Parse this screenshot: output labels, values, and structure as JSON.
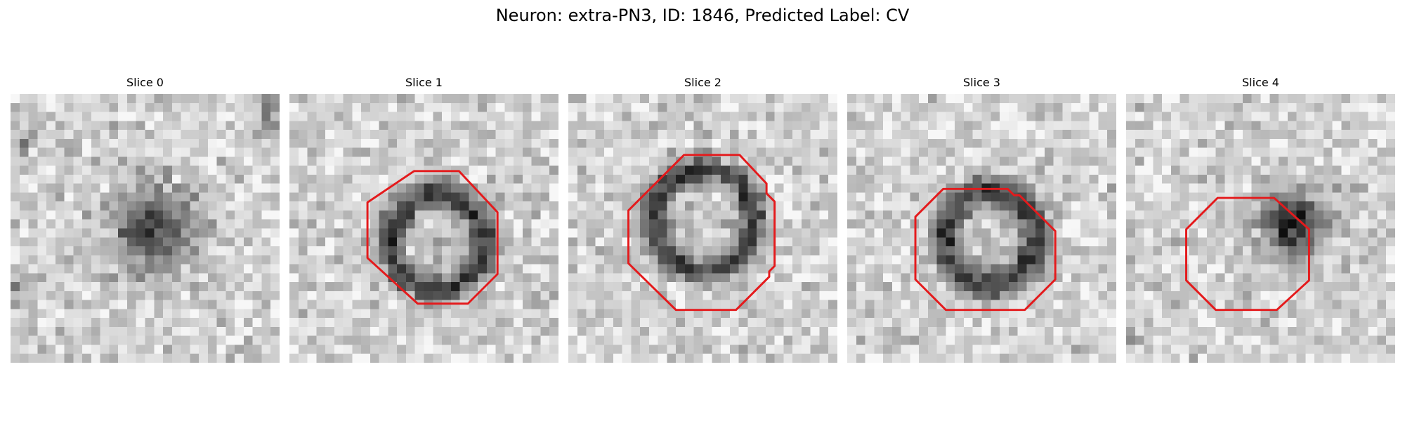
{
  "figure": {
    "title": "Neuron: extra-PN3, ID: 1846, Predicted Label: CV"
  },
  "slices": [
    {
      "title": "Slice 0",
      "has_contour": false,
      "feature": "dark-blob-center"
    },
    {
      "title": "Slice 1",
      "has_contour": true,
      "feature": "dark-ring"
    },
    {
      "title": "Slice 2",
      "has_contour": true,
      "feature": "dark-ring"
    },
    {
      "title": "Slice 3",
      "has_contour": true,
      "feature": "dark-ring"
    },
    {
      "title": "Slice 4",
      "has_contour": true,
      "feature": "dark-blob-upper-right"
    }
  ],
  "colors": {
    "contour": "#e41a1c",
    "background": "#ffffff"
  }
}
